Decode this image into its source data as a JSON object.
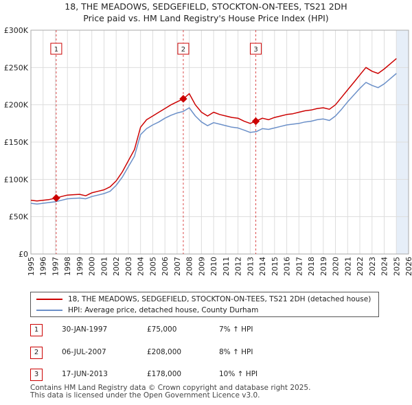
{
  "title_line1": "18, THE MEADOWS, SEDGEFIELD, STOCKTON-ON-TEES, TS21 2DH",
  "title_line2": "Price paid vs. HM Land Registry's House Price Index (HPI)",
  "colors": {
    "property": "#cc0000",
    "hpi": "#6a8fc8",
    "grid": "#dddddd",
    "shade": "#e6eef8",
    "marker": "#cc0000"
  },
  "chart_data": {
    "type": "line",
    "title": "Price paid vs. HM Land Registry's House Price Index (HPI)",
    "xlabel": "",
    "ylabel": "",
    "xlim": [
      1995,
      2026
    ],
    "ylim": [
      0,
      300000
    ],
    "x_ticks": [
      "1995",
      "1996",
      "1997",
      "1998",
      "1999",
      "2000",
      "2001",
      "2002",
      "2003",
      "2004",
      "2005",
      "2006",
      "2007",
      "2008",
      "2009",
      "2010",
      "2011",
      "2012",
      "2013",
      "2014",
      "2015",
      "2016",
      "2017",
      "2018",
      "2019",
      "2020",
      "2021",
      "2022",
      "2023",
      "2024",
      "2025",
      "2026"
    ],
    "y_ticks": [
      {
        "value": 0,
        "label": "£0"
      },
      {
        "value": 50000,
        "label": "£50K"
      },
      {
        "value": 100000,
        "label": "£100K"
      },
      {
        "value": 150000,
        "label": "£150K"
      },
      {
        "value": 200000,
        "label": "£200K"
      },
      {
        "value": 250000,
        "label": "£250K"
      },
      {
        "value": 300000,
        "label": "£300K"
      }
    ],
    "grid": true,
    "future_shade_from": 2025.0,
    "series": [
      {
        "name": "18, THE MEADOWS, SEDGEFIELD, STOCKTON-ON-TEES, TS21 2DH (detached house)",
        "color": "#cc0000",
        "x": [
          1995.0,
          1995.5,
          1996.0,
          1996.5,
          1997.08,
          1997.5,
          1998.0,
          1998.5,
          1999.0,
          1999.5,
          2000.0,
          2000.5,
          2001.0,
          2001.5,
          2002.0,
          2002.5,
          2003.0,
          2003.5,
          2004.0,
          2004.5,
          2005.0,
          2005.5,
          2006.0,
          2006.5,
          2007.0,
          2007.51,
          2008.0,
          2008.5,
          2009.0,
          2009.5,
          2010.0,
          2010.5,
          2011.0,
          2011.5,
          2012.0,
          2012.5,
          2013.0,
          2013.46,
          2014.0,
          2014.5,
          2015.0,
          2015.5,
          2016.0,
          2016.5,
          2017.0,
          2017.5,
          2018.0,
          2018.5,
          2019.0,
          2019.5,
          2020.0,
          2020.5,
          2021.0,
          2021.5,
          2022.0,
          2022.5,
          2023.0,
          2023.5,
          2024.0,
          2024.5,
          2025.0
        ],
        "values": [
          72000,
          71000,
          72000,
          73000,
          75000,
          77000,
          79000,
          79500,
          80000,
          78000,
          82000,
          84000,
          86000,
          90000,
          98000,
          110000,
          125000,
          140000,
          170000,
          180000,
          185000,
          190000,
          195000,
          200000,
          204000,
          208000,
          215000,
          200000,
          190000,
          185000,
          190000,
          187000,
          185000,
          183000,
          182000,
          178000,
          175000,
          178000,
          182000,
          180000,
          183000,
          185000,
          187000,
          188000,
          190000,
          192000,
          193000,
          195000,
          196000,
          194000,
          200000,
          210000,
          220000,
          230000,
          240000,
          250000,
          245000,
          242000,
          248000,
          255000,
          262000
        ]
      },
      {
        "name": "HPI: Average price, detached house, County Durham",
        "color": "#6a8fc8",
        "x": [
          1995.0,
          1995.5,
          1996.0,
          1996.5,
          1997.0,
          1997.5,
          1998.0,
          1998.5,
          1999.0,
          1999.5,
          2000.0,
          2000.5,
          2001.0,
          2001.5,
          2002.0,
          2002.5,
          2003.0,
          2003.5,
          2004.0,
          2004.5,
          2005.0,
          2005.5,
          2006.0,
          2006.5,
          2007.0,
          2007.5,
          2008.0,
          2008.5,
          2009.0,
          2009.5,
          2010.0,
          2010.5,
          2011.0,
          2011.5,
          2012.0,
          2012.5,
          2013.0,
          2013.5,
          2014.0,
          2014.5,
          2015.0,
          2015.5,
          2016.0,
          2016.5,
          2017.0,
          2017.5,
          2018.0,
          2018.5,
          2019.0,
          2019.5,
          2020.0,
          2020.5,
          2021.0,
          2021.5,
          2022.0,
          2022.5,
          2023.0,
          2023.5,
          2024.0,
          2024.5,
          2025.0
        ],
        "values": [
          68000,
          67000,
          68000,
          69000,
          70000,
          72000,
          74000,
          74500,
          75000,
          74000,
          77000,
          79000,
          81000,
          84000,
          92000,
          103000,
          117000,
          131000,
          160000,
          168000,
          173000,
          177000,
          182000,
          186000,
          189000,
          191000,
          196000,
          185000,
          177000,
          172000,
          176000,
          174000,
          172000,
          170000,
          169000,
          166000,
          163000,
          164000,
          168000,
          167000,
          169000,
          171000,
          173000,
          174000,
          175000,
          177000,
          178000,
          180000,
          181000,
          179000,
          185000,
          194000,
          204000,
          213000,
          222000,
          230000,
          226000,
          223000,
          228000,
          235000,
          242000
        ]
      }
    ],
    "markers": [
      {
        "label": "1",
        "x": 1997.08,
        "value": 75000
      },
      {
        "label": "2",
        "x": 2007.51,
        "value": 208000
      },
      {
        "label": "3",
        "x": 2013.46,
        "value": 178000
      }
    ]
  },
  "legend": {
    "property_label": "18, THE MEADOWS, SEDGEFIELD, STOCKTON-ON-TEES, TS21 2DH (detached house)",
    "hpi_label": "HPI: Average price, detached house, County Durham"
  },
  "sales": [
    {
      "num": "1",
      "date": "30-JAN-1997",
      "price": "£75,000",
      "hpi": "7% ↑ HPI"
    },
    {
      "num": "2",
      "date": "06-JUL-2007",
      "price": "£208,000",
      "hpi": "8% ↑ HPI"
    },
    {
      "num": "3",
      "date": "17-JUN-2013",
      "price": "£178,000",
      "hpi": "10% ↑ HPI"
    }
  ],
  "footer": {
    "line1": "Contains HM Land Registry data © Crown copyright and database right 2025.",
    "line2": "This data is licensed under the Open Government Licence v3.0."
  }
}
